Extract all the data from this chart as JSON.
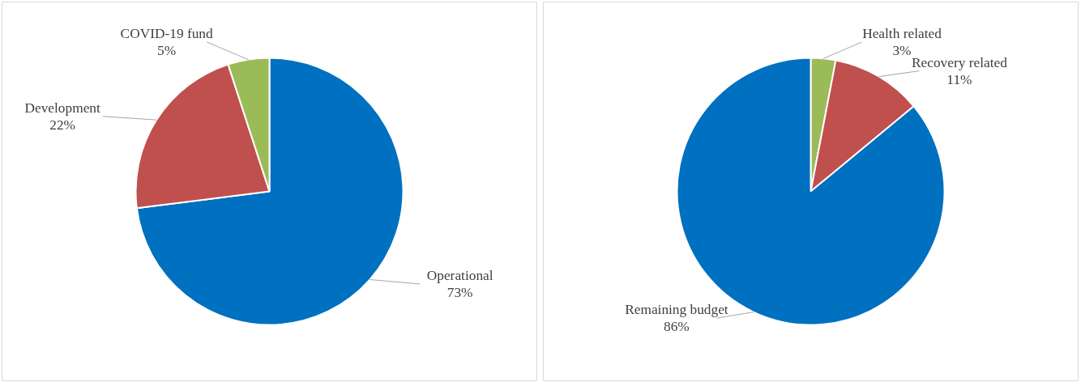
{
  "chart_data": [
    {
      "type": "pie",
      "categories": [
        "Operational",
        "Development",
        "COVID-19 fund"
      ],
      "values": [
        73,
        22,
        5
      ],
      "colors": [
        "#0070c0",
        "#c0504d",
        "#9bbb59"
      ],
      "value_labels": [
        "73%",
        "22%",
        "5%"
      ],
      "legend": false
    },
    {
      "type": "pie",
      "categories": [
        "Health related",
        "Recovery related",
        "Remaining budget"
      ],
      "values": [
        3,
        11,
        86
      ],
      "colors": [
        "#9bbb59",
        "#c0504d",
        "#0070c0"
      ],
      "value_labels": [
        "3%",
        "11%",
        "86%"
      ],
      "legend": false
    }
  ]
}
